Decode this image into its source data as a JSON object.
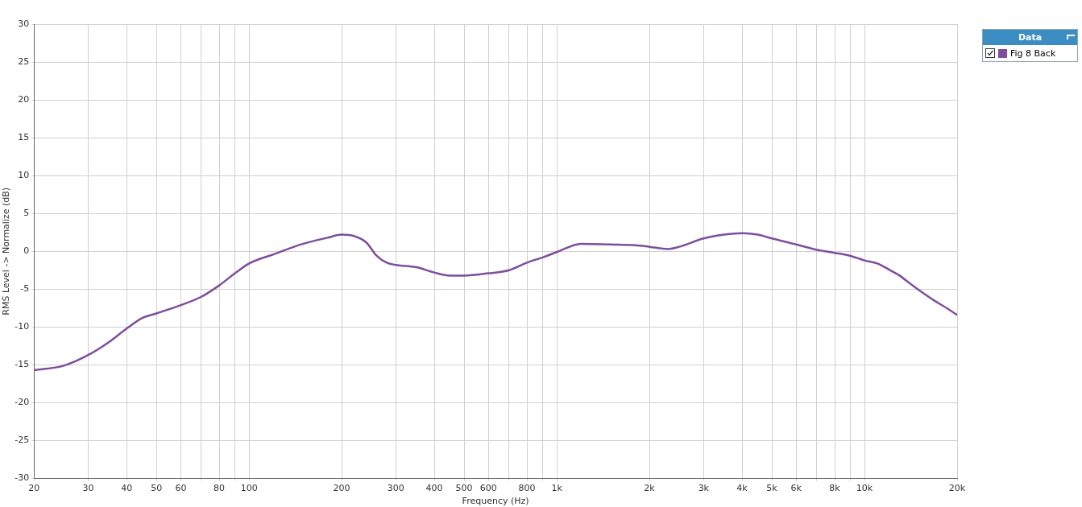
{
  "chart_data": {
    "type": "line",
    "xlabel": "Frequency (Hz)",
    "ylabel": "RMS Level -> Normalize (dB)",
    "legend_title": "Data",
    "log": "x",
    "grid": true,
    "legend": "top right",
    "marker": "none",
    "line_style": "solid",
    "xlim": [
      20,
      20000
    ],
    "xticks": [
      20,
      30,
      40,
      50,
      60,
      {
        "value": 70,
        "label": null
      },
      80,
      {
        "value": 90,
        "label": null
      },
      100,
      200,
      300,
      400,
      500,
      600,
      {
        "value": 700,
        "label": null
      },
      800,
      {
        "value": 900,
        "label": null
      },
      {
        "value": 1000,
        "label": "1k"
      },
      {
        "value": 2000,
        "label": "2k"
      },
      {
        "value": 3000,
        "label": "3k"
      },
      {
        "value": 4000,
        "label": "4k"
      },
      {
        "value": 5000,
        "label": "5k"
      },
      {
        "value": 6000,
        "label": "6k"
      },
      {
        "value": 7000,
        "label": null
      },
      {
        "value": 8000,
        "label": "8k"
      },
      {
        "value": 9000,
        "label": null
      },
      {
        "value": 10000,
        "label": "10k"
      },
      {
        "value": 20000,
        "label": "20k"
      }
    ],
    "ylim": [
      -30,
      30
    ],
    "yticks": [
      -30,
      -25,
      -20,
      -15,
      -10,
      -5,
      0,
      5,
      10,
      15,
      20,
      25,
      30
    ],
    "x": [
      20,
      25,
      30,
      35,
      40,
      45,
      50,
      60,
      70,
      80,
      90,
      100,
      120,
      150,
      180,
      200,
      220,
      240,
      260,
      280,
      300,
      350,
      400,
      450,
      500,
      600,
      700,
      800,
      900,
      1000,
      1200,
      1500,
      1800,
      2000,
      2300,
      2500,
      3000,
      3500,
      4000,
      4500,
      5000,
      6000,
      7000,
      8000,
      9000,
      10000,
      11000,
      12000,
      13000,
      14000,
      15000,
      17000,
      18000,
      20000
    ],
    "series": [
      {
        "name": "Fig 8 Back",
        "color": "#7d4e9e",
        "values": [
          -15.7,
          -15.1,
          -13.7,
          -12.0,
          -10.2,
          -8.8,
          -8.2,
          -7.1,
          -6.0,
          -4.5,
          -2.9,
          -1.6,
          -0.4,
          1.0,
          1.8,
          2.2,
          2.0,
          1.2,
          -0.6,
          -1.5,
          -1.8,
          -2.1,
          -2.8,
          -3.2,
          -3.2,
          -2.9,
          -2.5,
          -1.5,
          -0.8,
          -0.1,
          1.0,
          0.9,
          0.8,
          0.6,
          0.3,
          0.6,
          1.7,
          2.2,
          2.4,
          2.2,
          1.7,
          0.9,
          0.2,
          -0.2,
          -0.6,
          -1.2,
          -1.6,
          -2.4,
          -3.2,
          -4.2,
          -5.1,
          -6.6,
          -7.2,
          -8.4
        ]
      }
    ]
  }
}
